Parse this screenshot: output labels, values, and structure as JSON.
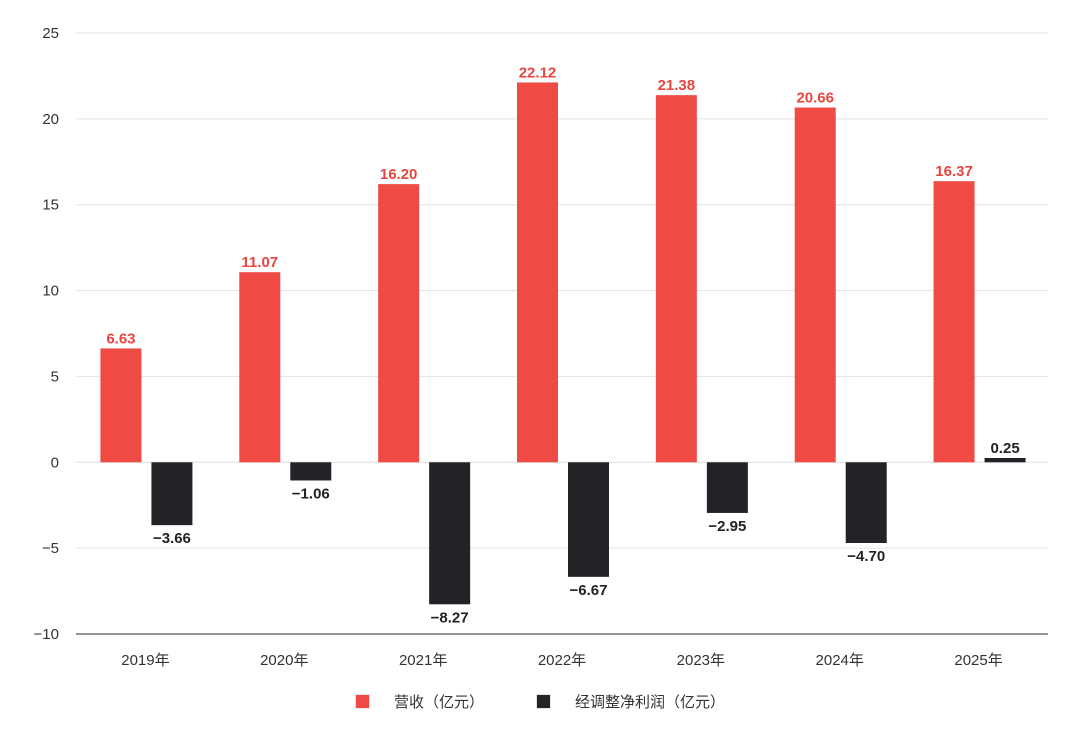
{
  "chart_data": {
    "type": "bar",
    "title": "",
    "xlabel": "",
    "ylabel": "",
    "categories": [
      "2019年",
      "2020年",
      "2021年",
      "2022年",
      "2023年",
      "2024年",
      "2025年"
    ],
    "series": [
      {
        "name": "营收（亿元）",
        "color": "#f04a45",
        "label_color": "#e8453f",
        "values": [
          6.63,
          11.07,
          16.2,
          22.12,
          21.38,
          20.66,
          16.37
        ],
        "labels": [
          "6.63",
          "11.07",
          "16.20",
          "22.12",
          "21.38",
          "20.66",
          "16.37"
        ]
      },
      {
        "name": "经调整净利润（亿元）",
        "color": "#212327",
        "label_color": "#222222",
        "values": [
          -3.66,
          -1.06,
          -8.27,
          -6.67,
          -2.95,
          -4.7,
          0.25
        ],
        "labels": [
          "−3.66",
          "−1.06",
          "−8.27",
          "−6.67",
          "−2.95",
          "−4.70",
          "0.25"
        ]
      }
    ],
    "ylim": [
      -10,
      25
    ],
    "yticks": [
      25,
      20,
      15,
      10,
      5,
      0,
      -5,
      -10
    ],
    "ytick_labels": [
      "25",
      "20",
      "15",
      "10",
      "5",
      "0",
      "−5",
      "−10"
    ],
    "grid": true,
    "legend_position": "bottom-center"
  }
}
